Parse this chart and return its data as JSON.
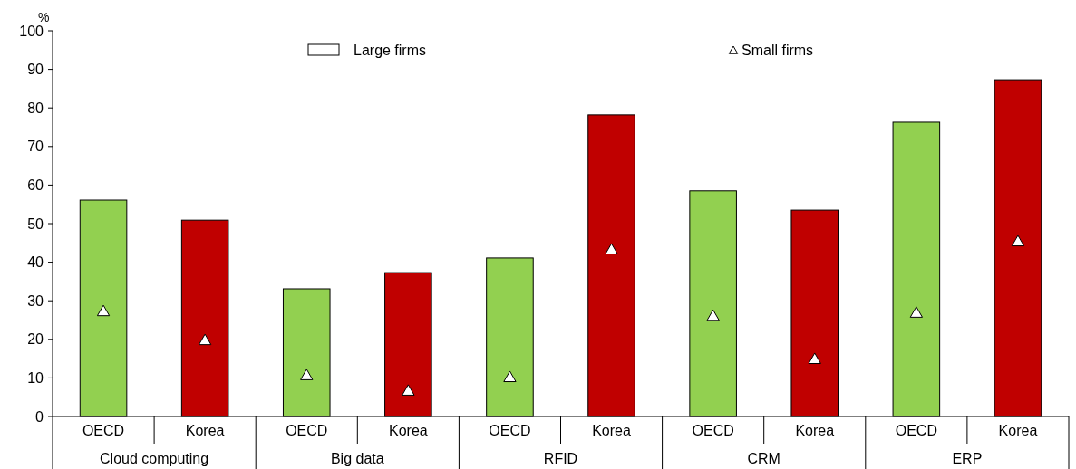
{
  "chart_data": {
    "type": "bar",
    "ylabel": "%",
    "categories": [
      "OECD",
      "Korea",
      "OECD",
      "Korea",
      "OECD",
      "Korea",
      "OECD",
      "Korea",
      "OECD",
      "Korea"
    ],
    "series": [
      {
        "name": "Large firms",
        "colors": [
          "#92d050",
          "#c00000",
          "#92d050",
          "#c00000",
          "#92d050",
          "#c00000",
          "#92d050",
          "#c00000",
          "#92d050",
          "#c00000"
        ],
        "values": [
          56.1,
          50.9,
          33.1,
          37.3,
          41.1,
          78.2,
          58.5,
          53.5,
          76.3,
          87.3
        ]
      },
      {
        "name": "Small firms",
        "type": "scatter",
        "marker": "triangle",
        "color": "#ffffff",
        "values": [
          27.2,
          19.7,
          10.6,
          6.6,
          10.1,
          43.2,
          26.0,
          14.8,
          26.8,
          45.3
        ]
      }
    ],
    "annotations": [
      "Cloud computing",
      "Big data",
      "RFID",
      "CRM",
      "ERP"
    ],
    "ylim": [
      0,
      100
    ],
    "yticks": [
      0,
      10,
      20,
      30,
      40,
      50,
      60,
      70,
      80,
      90,
      100
    ],
    "grid": false,
    "legend": "top"
  }
}
